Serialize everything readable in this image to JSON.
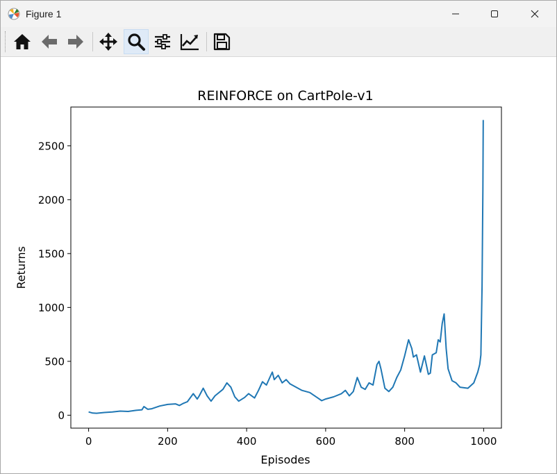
{
  "window": {
    "title": "Figure 1",
    "minimize_glyph": "—",
    "maximize_glyph": "☐",
    "close_glyph": "✕"
  },
  "toolbar": {
    "tools": [
      {
        "name": "home-icon",
        "active": false
      },
      {
        "name": "back-arrow-icon",
        "active": false
      },
      {
        "name": "forward-arrow-icon",
        "active": false
      },
      {
        "name": "pan-icon",
        "active": false
      },
      {
        "name": "zoom-icon",
        "active": true
      },
      {
        "name": "subplots-configure-icon",
        "active": false
      },
      {
        "name": "edit-axis-icon",
        "active": false
      },
      {
        "name": "save-icon",
        "active": false
      }
    ]
  },
  "chart_data": {
    "type": "line",
    "title": "REINFORCE on CartPole-v1",
    "xlabel": "Episodes",
    "ylabel": "Returns",
    "xlim": [
      -45,
      1045
    ],
    "ylim": [
      -120,
      2860
    ],
    "xticks": [
      0,
      200,
      400,
      600,
      800,
      1000
    ],
    "yticks": [
      0,
      500,
      1000,
      1500,
      2000,
      2500
    ],
    "grid": false,
    "color": "#1f77b4",
    "series": [
      {
        "x": [
          0,
          10,
          20,
          40,
          60,
          80,
          100,
          120,
          135,
          140,
          150,
          160,
          180,
          200,
          220,
          230,
          240,
          250,
          265,
          275,
          280,
          290,
          300,
          310,
          320,
          340,
          350,
          360,
          370,
          380,
          395,
          405,
          420,
          430,
          440,
          450,
          460,
          465,
          470,
          480,
          490,
          500,
          510,
          520,
          540,
          560,
          580,
          590,
          600,
          620,
          640,
          650,
          660,
          670,
          680,
          690,
          700,
          710,
          720,
          730,
          735,
          740,
          750,
          760,
          770,
          780,
          790,
          800,
          810,
          818,
          822,
          830,
          840,
          850,
          860,
          865,
          870,
          880,
          885,
          890,
          895,
          900,
          905,
          910,
          920,
          930,
          940,
          960,
          975,
          985,
          990,
          993,
          996,
          998,
          999
        ],
        "y": [
          30,
          20,
          18,
          25,
          30,
          38,
          35,
          45,
          50,
          80,
          55,
          60,
          85,
          100,
          105,
          90,
          110,
          125,
          200,
          150,
          180,
          250,
          180,
          130,
          180,
          240,
          300,
          260,
          170,
          130,
          165,
          200,
          160,
          230,
          310,
          280,
          360,
          400,
          330,
          370,
          300,
          330,
          290,
          270,
          230,
          210,
          160,
          135,
          150,
          170,
          200,
          230,
          180,
          220,
          350,
          260,
          240,
          300,
          280,
          470,
          500,
          430,
          250,
          220,
          260,
          350,
          420,
          550,
          700,
          620,
          540,
          560,
          400,
          550,
          380,
          390,
          560,
          580,
          700,
          680,
          850,
          940,
          620,
          430,
          320,
          300,
          260,
          250,
          300,
          400,
          470,
          560,
          1200,
          2100,
          2740
        ]
      }
    ]
  }
}
